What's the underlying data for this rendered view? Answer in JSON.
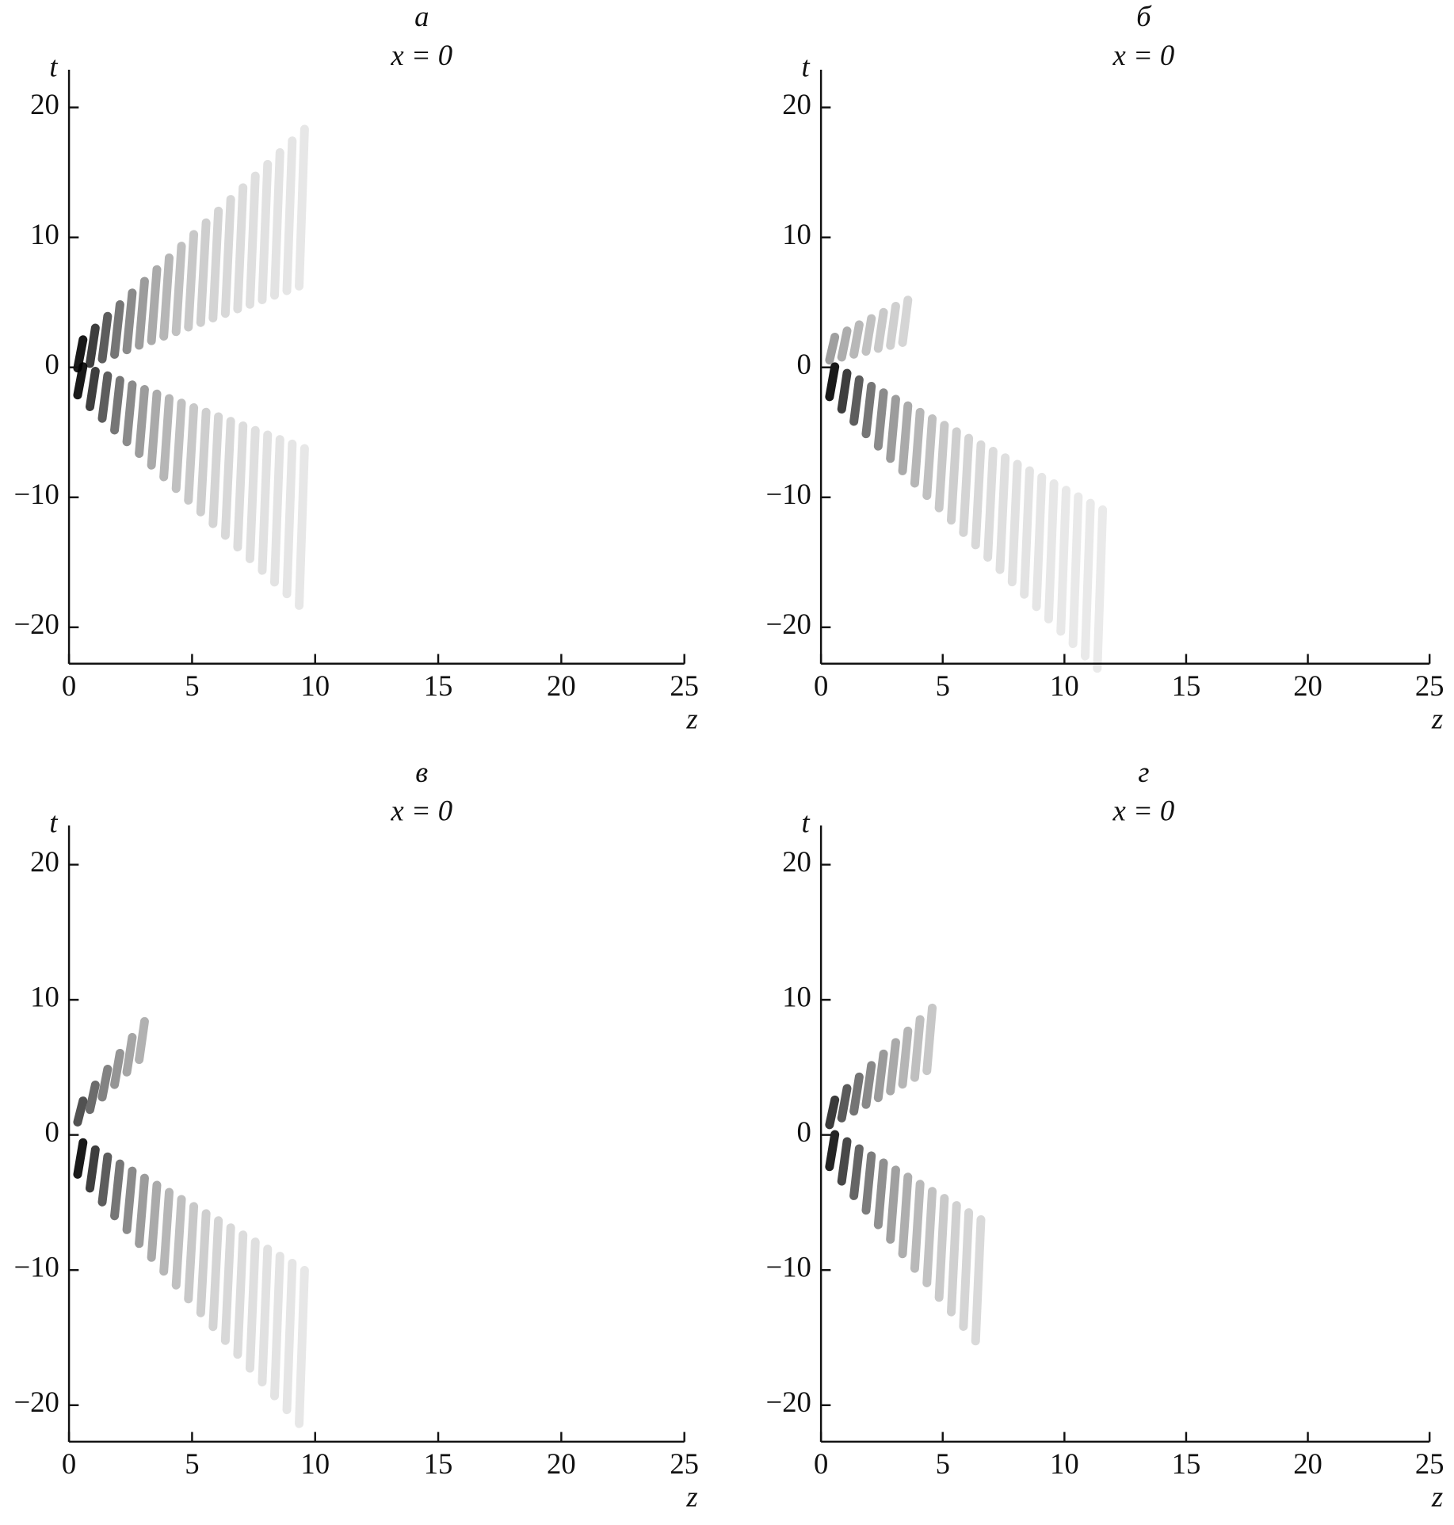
{
  "chart_data": [
    {
      "type": "density",
      "title": "а",
      "subtitle": "x = 0",
      "xlabel": "z",
      "ylabel": "t",
      "xlim": [
        0,
        25
      ],
      "ylim": [
        -22.8,
        22.9
      ],
      "xticks": [
        0,
        5,
        10,
        15,
        20,
        25
      ],
      "yticks": [
        {
          "value": -20,
          "label": "−20"
        },
        {
          "value": -10,
          "label": "−10"
        },
        0,
        10,
        20
      ]
    },
    {
      "type": "density",
      "title": "б",
      "subtitle": "x = 0",
      "xlabel": "z",
      "ylabel": "t",
      "xlim": [
        0,
        25
      ],
      "ylim": [
        -22.8,
        22.9
      ],
      "xticks": [
        0,
        5,
        10,
        15,
        20,
        25
      ],
      "yticks": [
        {
          "value": -20,
          "label": "−20"
        },
        {
          "value": -10,
          "label": "−10"
        },
        0,
        10,
        20
      ]
    },
    {
      "type": "density",
      "title": "в",
      "subtitle": "x = 0",
      "xlabel": "z",
      "ylabel": "t",
      "xlim": [
        0,
        25
      ],
      "ylim": [
        -22.7,
        22.9
      ],
      "xticks": [
        0,
        5,
        10,
        15,
        20,
        25
      ],
      "yticks": [
        {
          "value": -20,
          "label": "−20"
        },
        {
          "value": -10,
          "label": "−10"
        },
        0,
        10,
        20
      ]
    },
    {
      "type": "density",
      "title": "г",
      "subtitle": "x = 0",
      "xlabel": "z",
      "ylabel": "t",
      "xlim": [
        0,
        25
      ],
      "ylim": [
        -22.7,
        22.9
      ],
      "xticks": [
        0,
        5,
        10,
        15,
        20,
        25
      ],
      "yticks": [
        {
          "value": -20,
          "label": "−20"
        },
        {
          "value": -10,
          "label": "−10"
        },
        0,
        10,
        20
      ]
    }
  ]
}
